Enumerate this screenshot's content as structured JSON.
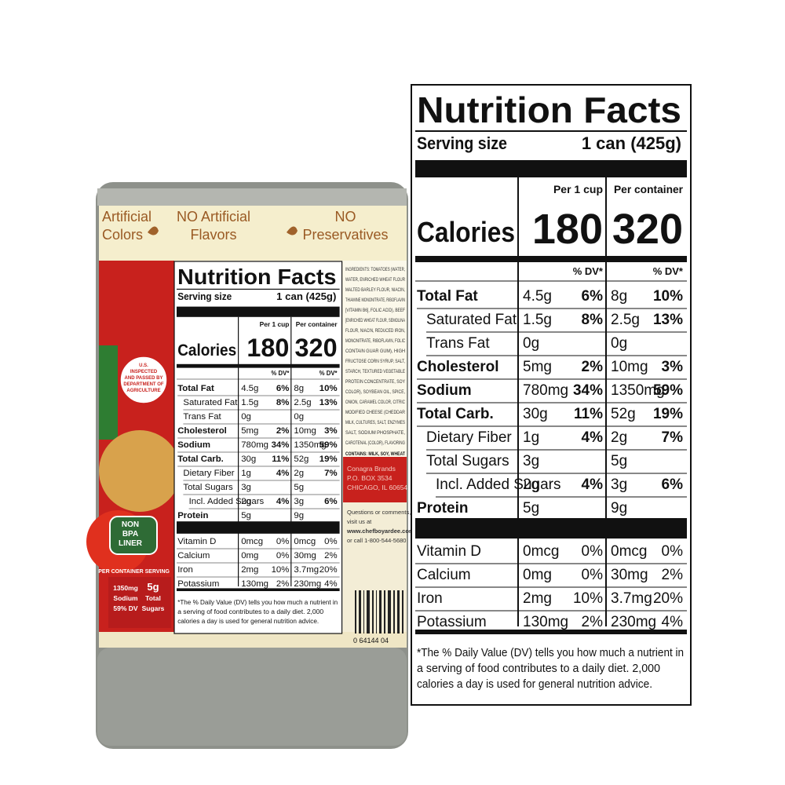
{
  "label": {
    "title": "Nutrition Facts",
    "serving_label": "Serving size",
    "serving_value": "1 can (425g)",
    "col1": "Per 1 cup",
    "col2": "Per container",
    "calories_label": "Calories",
    "calories": [
      "180",
      "320"
    ],
    "dv_header": "% DV*",
    "rows": [
      {
        "name": "Total Fat",
        "bold": true,
        "indent": 0,
        "v1": "4.5g",
        "p1": "6%",
        "v2": "8g",
        "p2": "10%"
      },
      {
        "name": "Saturated Fat",
        "bold": false,
        "indent": 1,
        "v1": "1.5g",
        "p1": "8%",
        "v2": "2.5g",
        "p2": "13%"
      },
      {
        "name": "Trans Fat",
        "bold": false,
        "indent": 1,
        "v1": "0g",
        "v2": "0g"
      },
      {
        "name": "Cholesterol",
        "bold": true,
        "indent": 0,
        "v1": "5mg",
        "p1": "2%",
        "v2": "10mg",
        "p2": "3%"
      },
      {
        "name": "Sodium",
        "bold": true,
        "indent": 0,
        "v1": "780mg",
        "p1": "34%",
        "v2": "1350mg",
        "p2": "59%"
      },
      {
        "name": "Total Carb.",
        "bold": true,
        "indent": 0,
        "v1": "30g",
        "p1": "11%",
        "v2": "52g",
        "p2": "19%"
      },
      {
        "name": "Dietary Fiber",
        "bold": false,
        "indent": 1,
        "v1": "1g",
        "p1": "4%",
        "v2": "2g",
        "p2": "7%"
      },
      {
        "name": "Total Sugars",
        "bold": false,
        "indent": 1,
        "v1": "3g",
        "v2": "5g"
      },
      {
        "name": "Incl. Added Sugars",
        "bold": false,
        "indent": 2,
        "v1": "2g",
        "p1": "4%",
        "v2": "3g",
        "p2": "6%"
      },
      {
        "name": "Protein",
        "bold": true,
        "indent": 0,
        "v1": "5g",
        "v2": "9g"
      }
    ],
    "vitamins": [
      {
        "name": "Vitamin D",
        "v1": "0mcg",
        "p1": "0%",
        "v2": "0mcg",
        "p2": "0%"
      },
      {
        "name": "Calcium",
        "v1": "0mg",
        "p1": "0%",
        "v2": "30mg",
        "p2": "2%"
      },
      {
        "name": "Iron",
        "v1": "2mg",
        "p1": "10%",
        "v2": "3.7mg",
        "p2": "20%"
      },
      {
        "name": "Potassium",
        "v1": "130mg",
        "p1": "2%",
        "v2": "230mg",
        "p2": "4%"
      }
    ],
    "footnote": [
      "*The % Daily Value (DV) tells you how much a nutrient in",
      "a serving of food contributes to a daily diet. 2,000",
      "calories a day is used for general nutrition advice."
    ]
  },
  "can": {
    "badges": [
      [
        "Artificial",
        "Colors"
      ],
      [
        "NO Artificial",
        "Flavors"
      ],
      [
        "NO",
        "Preservatives"
      ]
    ],
    "usda": [
      "U.S.",
      "INSPECTED",
      "AND PASSED BY",
      "DEPARTMENT OF",
      "AGRICULTURE"
    ],
    "bpa": [
      "NON",
      "BPA",
      "LINER"
    ],
    "per_serving": "PER CONTAINER SERVING",
    "front_facts": [
      [
        "1350mg",
        "Sodium",
        "59% DV"
      ],
      [
        "5g",
        "Total",
        "Sugars"
      ]
    ],
    "ingredients": [
      "INGREDIENTS: TOMATOES (WATER,",
      "WATER, ENRICHED WHEAT FLOUR",
      "MALTED BARLEY FLOUR, NIACIN,",
      "THIAMINE MONONITRATE, RIBOFLAVIN",
      "[VITAMIN B6], FOLIC ACID), BEEF",
      "[ENRICHED WHEAT FLOUR, SEMOLINA",
      "FLOUR, NIACIN, REDUCED IRON,",
      "MONONITRATE, RIBOFLAVIN, FOLIC",
      "CONTAIN GUAR GUM), HIGH",
      "FRUCTOSE CORN SYRUP, SALT,",
      "STARCH, TEXTURED VEGETABLE",
      "PROTEIN CONCENTRATE, SOY",
      "COLOR), SOYBEAN OIL, SPICE,",
      "ONION, CARAMEL COLOR, CITRIC",
      "MODIFIED CHEESE (CHEDDAR",
      "MILK, CULTURES, SALT, ENZYMES",
      "SALT, SODIUM PHOSPHATE,",
      "CAROTENAL (COLOR), FLAVORING"
    ],
    "contains": "CONTAINS: MILK, SOY, WHEAT",
    "address": [
      "Conagra Brands",
      "P.O. BOX 3534",
      "CHICAGO, IL 60654"
    ],
    "questions": [
      "Questions or comments,",
      "visit us at",
      "www.chefboyardee.com",
      "or call 1-800-544-5680"
    ],
    "barcode": "0 64144 04"
  }
}
